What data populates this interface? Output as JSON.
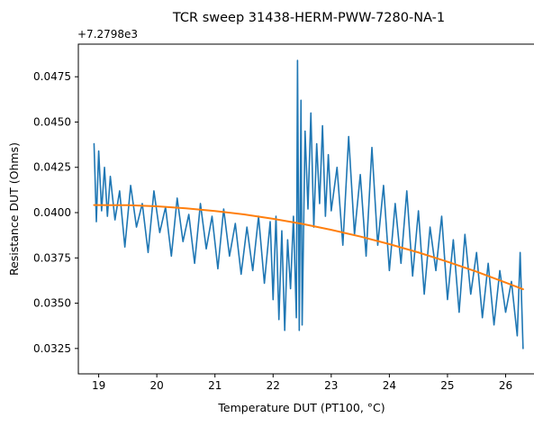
{
  "chart_data": {
    "type": "line",
    "title": "TCR sweep 31438-HERM-PWW-7280-NA-1",
    "xlabel": "Temperature DUT (PT100, °C)",
    "ylabel": "Resistance DUT (Ohms)",
    "y_offset_label": "+7.2798e3",
    "xlim": [
      18.65,
      26.55
    ],
    "ylim": [
      0.0311,
      0.0493
    ],
    "x_ticks": [
      19,
      20,
      21,
      22,
      23,
      24,
      25,
      26
    ],
    "x_tick_labels": [
      "19",
      "20",
      "21",
      "22",
      "23",
      "24",
      "25",
      "26"
    ],
    "y_ticks": [
      0.0325,
      0.035,
      0.0375,
      0.04,
      0.0425,
      0.045,
      0.0475
    ],
    "y_tick_labels": [
      "0.0325",
      "0.0350",
      "0.0375",
      "0.0400",
      "0.0425",
      "0.0450",
      "0.0475"
    ],
    "grid": false,
    "legend": "none",
    "series": [
      {
        "role": "measured",
        "color": "#1f77b4",
        "x": [
          18.92,
          18.96,
          19.0,
          19.05,
          19.1,
          19.15,
          19.2,
          19.28,
          19.36,
          19.45,
          19.55,
          19.65,
          19.75,
          19.85,
          19.95,
          20.05,
          20.15,
          20.25,
          20.35,
          20.45,
          20.55,
          20.65,
          20.75,
          20.85,
          20.95,
          21.05,
          21.15,
          21.25,
          21.35,
          21.45,
          21.55,
          21.65,
          21.75,
          21.85,
          21.95,
          22.0,
          22.05,
          22.1,
          22.15,
          22.2,
          22.25,
          22.3,
          22.35,
          22.4,
          22.42,
          22.45,
          22.48,
          22.5,
          22.55,
          22.6,
          22.65,
          22.7,
          22.75,
          22.8,
          22.85,
          22.9,
          22.95,
          23.0,
          23.1,
          23.2,
          23.3,
          23.4,
          23.5,
          23.6,
          23.7,
          23.8,
          23.9,
          24.0,
          24.1,
          24.2,
          24.3,
          24.4,
          24.5,
          24.6,
          24.7,
          24.8,
          24.9,
          25.0,
          25.1,
          25.2,
          25.3,
          25.4,
          25.5,
          25.6,
          25.7,
          25.8,
          25.9,
          26.0,
          26.1,
          26.2,
          26.25,
          26.3
        ],
        "values": [
          0.0438,
          0.0395,
          0.0434,
          0.0401,
          0.0425,
          0.0398,
          0.042,
          0.0396,
          0.0412,
          0.0381,
          0.0415,
          0.0392,
          0.0405,
          0.0378,
          0.0412,
          0.0389,
          0.0403,
          0.0376,
          0.0408,
          0.0384,
          0.0399,
          0.0372,
          0.0405,
          0.038,
          0.0398,
          0.0369,
          0.0402,
          0.0376,
          0.0394,
          0.0366,
          0.0392,
          0.0368,
          0.0398,
          0.0361,
          0.0395,
          0.0352,
          0.0398,
          0.0341,
          0.039,
          0.0335,
          0.0385,
          0.0358,
          0.0398,
          0.0342,
          0.0484,
          0.0335,
          0.0462,
          0.0338,
          0.0445,
          0.0402,
          0.0455,
          0.0392,
          0.0438,
          0.0405,
          0.0448,
          0.0398,
          0.0432,
          0.0401,
          0.0425,
          0.0382,
          0.0442,
          0.0388,
          0.0421,
          0.0376,
          0.0436,
          0.0382,
          0.0415,
          0.0368,
          0.0405,
          0.0372,
          0.0412,
          0.0365,
          0.0401,
          0.0355,
          0.0392,
          0.0368,
          0.0398,
          0.0352,
          0.0385,
          0.0345,
          0.0388,
          0.0355,
          0.0378,
          0.0342,
          0.0372,
          0.0338,
          0.0368,
          0.0345,
          0.0362,
          0.0332,
          0.0378,
          0.0325
        ]
      },
      {
        "role": "fit",
        "color": "#ff7f0e",
        "x": [
          18.92,
          19.5,
          20.0,
          20.5,
          21.0,
          21.5,
          22.0,
          22.5,
          23.0,
          23.5,
          24.0,
          24.5,
          25.0,
          25.5,
          26.0,
          26.3
        ],
        "values": [
          0.04042,
          0.04041,
          0.04035,
          0.04024,
          0.04009,
          0.0399,
          0.03966,
          0.03938,
          0.03905,
          0.03868,
          0.03826,
          0.0378,
          0.03729,
          0.03674,
          0.03614,
          0.03577
        ]
      }
    ]
  }
}
